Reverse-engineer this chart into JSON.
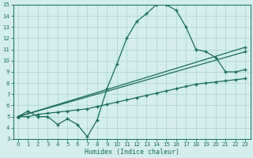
{
  "xlabel": "Humidex (Indice chaleur)",
  "bg_color": "#d4eeeb",
  "grid_color": "#a8d4d0",
  "line_color": "#1a6b5a",
  "spine_color": "#1a6b5a",
  "xlim": [
    -0.5,
    23.5
  ],
  "ylim": [
    3,
    15
  ],
  "xticks": [
    0,
    1,
    2,
    3,
    4,
    5,
    6,
    7,
    8,
    9,
    10,
    11,
    12,
    13,
    14,
    15,
    16,
    17,
    18,
    19,
    20,
    21,
    22,
    23
  ],
  "yticks": [
    3,
    4,
    5,
    6,
    7,
    8,
    9,
    10,
    11,
    12,
    13,
    14,
    15
  ],
  "curve1_x": [
    0,
    1,
    2,
    3,
    4,
    5,
    6,
    7,
    8,
    9,
    10,
    11,
    12,
    13,
    14,
    15,
    16,
    17,
    18,
    19,
    20,
    21,
    22,
    23
  ],
  "curve1_y": [
    5.0,
    5.5,
    5.0,
    5.0,
    4.3,
    4.8,
    4.3,
    3.2,
    4.7,
    7.5,
    9.7,
    12.0,
    13.5,
    14.2,
    15.0,
    15.0,
    14.5,
    13.0,
    11.0,
    10.8,
    10.3,
    9.0,
    9.0,
    9.2
  ],
  "curve2_x": [
    0,
    1,
    2,
    3,
    4,
    5,
    6,
    7,
    8,
    9,
    10,
    11,
    12,
    13,
    14,
    15,
    16,
    17,
    18,
    19,
    20,
    21,
    22,
    23
  ],
  "curve2_y": [
    5.0,
    5.0,
    5.2,
    5.3,
    5.4,
    5.5,
    5.6,
    5.7,
    5.9,
    6.1,
    6.3,
    6.5,
    6.7,
    6.9,
    7.1,
    7.3,
    7.5,
    7.7,
    7.9,
    8.0,
    8.1,
    8.2,
    8.3,
    8.4
  ],
  "curve3_x": [
    0,
    23
  ],
  "curve3_y": [
    5.0,
    10.8
  ],
  "curve4_x": [
    0,
    23
  ],
  "curve4_y": [
    5.0,
    11.2
  ],
  "marker": "+",
  "markersize": 3,
  "linewidth": 0.9,
  "tick_fontsize": 5.0,
  "label_fontsize": 6.0
}
